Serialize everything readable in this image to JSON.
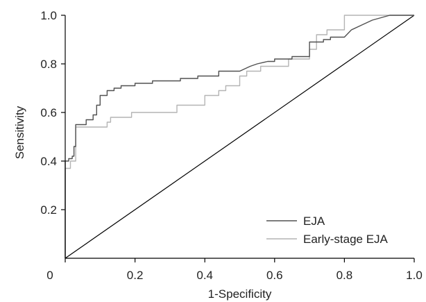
{
  "chart_data": {
    "type": "line",
    "title": "",
    "xlabel": "1-Specificity",
    "ylabel": "Sensitivity",
    "xlim": [
      0,
      1
    ],
    "ylim": [
      0,
      1
    ],
    "x_ticks": [
      "0",
      "0.2",
      "0.4",
      "0.6",
      "0.8",
      "1.0"
    ],
    "y_ticks": [
      "0.2",
      "0.4",
      "0.6",
      "0.8",
      "1.0"
    ],
    "grid": false,
    "legend_position": "bottom-right",
    "series": [
      {
        "name": "EJA",
        "color": "#505050",
        "points": [
          [
            0,
            0
          ],
          [
            0,
            0.4
          ],
          [
            0.01,
            0.4
          ],
          [
            0.01,
            0.41
          ],
          [
            0.02,
            0.41
          ],
          [
            0.02,
            0.42
          ],
          [
            0.025,
            0.42
          ],
          [
            0.025,
            0.46
          ],
          [
            0.03,
            0.46
          ],
          [
            0.03,
            0.55
          ],
          [
            0.06,
            0.55
          ],
          [
            0.06,
            0.57
          ],
          [
            0.08,
            0.57
          ],
          [
            0.08,
            0.59
          ],
          [
            0.09,
            0.59
          ],
          [
            0.09,
            0.63
          ],
          [
            0.1,
            0.63
          ],
          [
            0.1,
            0.67
          ],
          [
            0.12,
            0.67
          ],
          [
            0.12,
            0.69
          ],
          [
            0.14,
            0.69
          ],
          [
            0.14,
            0.7
          ],
          [
            0.16,
            0.7
          ],
          [
            0.16,
            0.71
          ],
          [
            0.2,
            0.71
          ],
          [
            0.2,
            0.72
          ],
          [
            0.25,
            0.72
          ],
          [
            0.25,
            0.73
          ],
          [
            0.33,
            0.73
          ],
          [
            0.33,
            0.74
          ],
          [
            0.38,
            0.74
          ],
          [
            0.38,
            0.75
          ],
          [
            0.44,
            0.75
          ],
          [
            0.44,
            0.77
          ],
          [
            0.5,
            0.77
          ],
          [
            0.53,
            0.79
          ],
          [
            0.55,
            0.8
          ],
          [
            0.58,
            0.81
          ],
          [
            0.6,
            0.81
          ],
          [
            0.6,
            0.82
          ],
          [
            0.65,
            0.82
          ],
          [
            0.65,
            0.83
          ],
          [
            0.7,
            0.83
          ],
          [
            0.7,
            0.89
          ],
          [
            0.74,
            0.89
          ],
          [
            0.74,
            0.9
          ],
          [
            0.76,
            0.9
          ],
          [
            0.76,
            0.91
          ],
          [
            0.8,
            0.91
          ],
          [
            0.82,
            0.94
          ],
          [
            0.85,
            0.96
          ],
          [
            0.88,
            0.98
          ],
          [
            0.93,
            1.0
          ],
          [
            1.0,
            1.0
          ]
        ]
      },
      {
        "name": "Early-stage EJA",
        "color": "#b4b4b4",
        "points": [
          [
            0,
            0
          ],
          [
            0,
            0.37
          ],
          [
            0.015,
            0.37
          ],
          [
            0.015,
            0.4
          ],
          [
            0.03,
            0.4
          ],
          [
            0.03,
            0.54
          ],
          [
            0.12,
            0.54
          ],
          [
            0.12,
            0.56
          ],
          [
            0.13,
            0.56
          ],
          [
            0.13,
            0.58
          ],
          [
            0.19,
            0.58
          ],
          [
            0.19,
            0.6
          ],
          [
            0.32,
            0.6
          ],
          [
            0.32,
            0.63
          ],
          [
            0.4,
            0.63
          ],
          [
            0.4,
            0.67
          ],
          [
            0.44,
            0.67
          ],
          [
            0.44,
            0.69
          ],
          [
            0.46,
            0.69
          ],
          [
            0.46,
            0.71
          ],
          [
            0.5,
            0.71
          ],
          [
            0.5,
            0.75
          ],
          [
            0.52,
            0.75
          ],
          [
            0.52,
            0.77
          ],
          [
            0.56,
            0.77
          ],
          [
            0.56,
            0.79
          ],
          [
            0.64,
            0.79
          ],
          [
            0.64,
            0.82
          ],
          [
            0.7,
            0.82
          ],
          [
            0.7,
            0.86
          ],
          [
            0.72,
            0.86
          ],
          [
            0.72,
            0.92
          ],
          [
            0.75,
            0.92
          ],
          [
            0.75,
            0.94
          ],
          [
            0.8,
            0.94
          ],
          [
            0.8,
            1.0
          ],
          [
            1.0,
            1.0
          ]
        ]
      },
      {
        "name": "",
        "color": "#000000",
        "points": [
          [
            0,
            0
          ],
          [
            1,
            1
          ]
        ]
      }
    ]
  }
}
